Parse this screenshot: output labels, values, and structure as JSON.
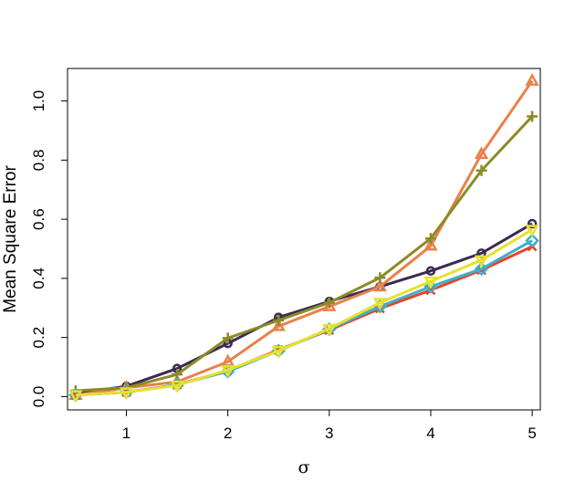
{
  "chart_data": {
    "type": "line",
    "title": "",
    "xlabel": "σ",
    "ylabel": "Mean Square Error",
    "xlim": [
      0.42,
      5.08
    ],
    "ylim": [
      -0.045,
      1.11
    ],
    "x_ticks": [
      "1",
      "2",
      "3",
      "4",
      "5"
    ],
    "y_ticks": [
      "0.0",
      "0.2",
      "0.4",
      "0.6",
      "0.8",
      "1.0"
    ],
    "grid": false,
    "legend": "none",
    "x": [
      0.5,
      1,
      1.5,
      2,
      2.5,
      3,
      3.5,
      4,
      4.5,
      5
    ],
    "series": [
      {
        "color": "#3a2b4f",
        "marker": "circle",
        "values": [
          0.01,
          0.035,
          0.095,
          0.18,
          0.268,
          0.322,
          0.372,
          0.425,
          0.485,
          0.585
        ]
      },
      {
        "color": "#e8814a",
        "marker": "triangle",
        "values": [
          0.005,
          0.03,
          0.05,
          0.118,
          0.238,
          0.305,
          0.372,
          0.51,
          0.82,
          1.068
        ]
      },
      {
        "color": "#8c8b25",
        "marker": "plus",
        "values": [
          0.02,
          0.03,
          0.075,
          0.198,
          0.258,
          0.318,
          0.402,
          0.535,
          0.765,
          0.948
        ]
      },
      {
        "color": "#e8402a",
        "marker": "x",
        "values": [
          0.005,
          0.015,
          0.04,
          0.088,
          0.158,
          0.225,
          0.298,
          0.36,
          0.428,
          0.508
        ]
      },
      {
        "color": "#3fb0c8",
        "marker": "diamond",
        "values": [
          0.005,
          0.015,
          0.04,
          0.085,
          0.155,
          0.228,
          0.305,
          0.372,
          0.432,
          0.528
        ]
      },
      {
        "color": "#e8e02e",
        "marker": "triangle-down",
        "values": [
          0.005,
          0.015,
          0.038,
          0.09,
          0.155,
          0.23,
          0.318,
          0.39,
          0.462,
          0.565
        ]
      }
    ]
  }
}
